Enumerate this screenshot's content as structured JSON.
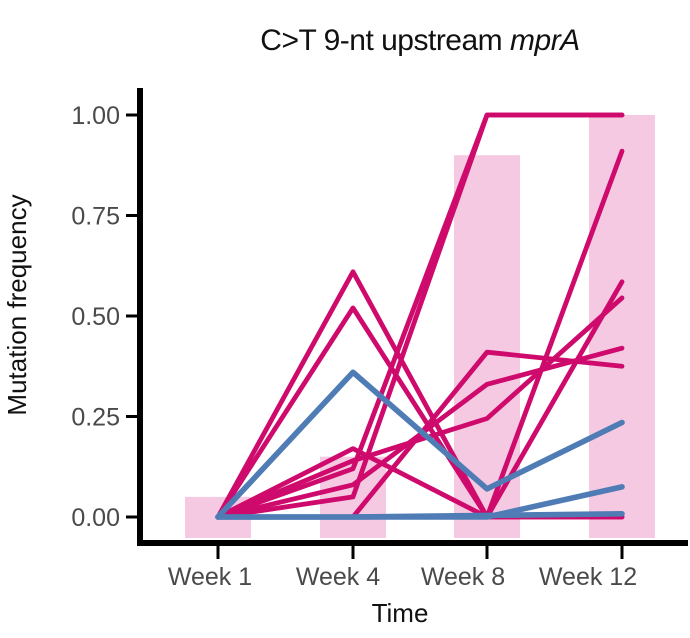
{
  "title": {
    "prefix": "C>T 9-nt upstream ",
    "gene": "mprA"
  },
  "axes": {
    "y_label": "Mutation frequency",
    "x_label": "Time",
    "y_ticks": [
      "1.00",
      "0.75",
      "0.50",
      "0.25",
      "0.00"
    ],
    "y_tick_values": [
      1.0,
      0.75,
      0.5,
      0.25,
      0.0
    ],
    "x_ticks": [
      "Week 1",
      "Week 4",
      "Week 8",
      "Week 12"
    ]
  },
  "colors": {
    "magenta_line": "#ce0a6c",
    "blue_line": "#4f7cb5",
    "bar_fill": "#f5c9e2",
    "axis": "#000000",
    "tick_label": "#4a4a4a",
    "text": "#111111"
  },
  "chart_data": {
    "type": "line",
    "title": "C>T 9-nt upstream mprA",
    "xlabel": "Time",
    "ylabel": "Mutation frequency",
    "categories": [
      "Week 1",
      "Week 4",
      "Week 8",
      "Week 12"
    ],
    "ylim": [
      0,
      1
    ],
    "grid": false,
    "legend": "none",
    "background_bars": {
      "note": "light pink bars behind the lines, one per timepoint",
      "values": [
        0.05,
        0.15,
        0.9,
        1.0
      ],
      "color": "#f5c9e2"
    },
    "series": [
      {
        "name": "magenta-line-1",
        "color": "#ce0a6c",
        "values": [
          0,
          0.05,
          1.0,
          1.0
        ]
      },
      {
        "name": "magenta-line-2",
        "color": "#ce0a6c",
        "values": [
          0,
          0.12,
          1.0,
          1.0
        ]
      },
      {
        "name": "magenta-line-3",
        "color": "#ce0a6c",
        "values": [
          0,
          0.61,
          0.0,
          0.91
        ]
      },
      {
        "name": "magenta-line-4",
        "color": "#ce0a6c",
        "values": [
          0,
          0.52,
          0.0,
          0.585
        ]
      },
      {
        "name": "magenta-line-5",
        "color": "#ce0a6c",
        "values": [
          0,
          0.0,
          0.41,
          0.375
        ]
      },
      {
        "name": "magenta-line-6",
        "color": "#ce0a6c",
        "values": [
          0,
          0.08,
          0.33,
          0.42
        ]
      },
      {
        "name": "magenta-line-7",
        "color": "#ce0a6c",
        "values": [
          0,
          0.14,
          0.245,
          0.545
        ]
      },
      {
        "name": "magenta-line-8",
        "color": "#ce0a6c",
        "values": [
          0,
          0.17,
          0.0,
          0.0
        ]
      },
      {
        "name": "magenta-line-9",
        "color": "#ce0a6c",
        "values": [
          0,
          0.0,
          0.0,
          0.0
        ]
      },
      {
        "name": "blue-line-1",
        "color": "#4f7cb5",
        "values": [
          0,
          0.36,
          0.07,
          0.235
        ]
      },
      {
        "name": "blue-line-2",
        "color": "#4f7cb5",
        "values": [
          0,
          0.0,
          0.0,
          0.075
        ]
      },
      {
        "name": "blue-line-3",
        "color": "#4f7cb5",
        "values": [
          0,
          0.0,
          0.004,
          0.008
        ]
      }
    ]
  }
}
